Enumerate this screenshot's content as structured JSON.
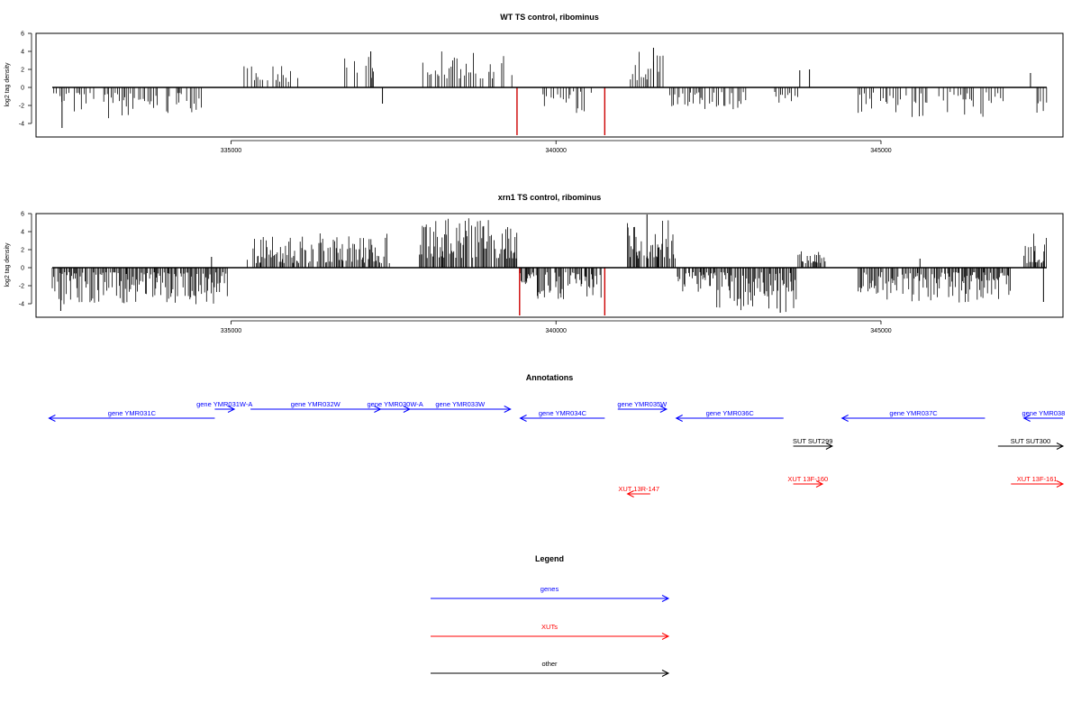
{
  "chart_data": [
    {
      "type": "bar",
      "title": "WT TS control, ribominus",
      "ylabel": "log2 tag density",
      "xlabel": "",
      "xlim": [
        332000,
        347800
      ],
      "xticks": [
        335000,
        340000,
        345000
      ],
      "ylim": [
        -5.5,
        6
      ],
      "yticks": [
        6,
        4,
        2,
        0,
        -2,
        -4
      ],
      "grid": false,
      "seed": 11,
      "zero_line": [
        332250,
        347550
      ],
      "segments": [
        {
          "x0": 332250,
          "x1": 334550,
          "min": -3.5,
          "max": -0.6
        },
        {
          "x0": 335200,
          "x1": 336100,
          "min": 0.6,
          "max": 2.5
        },
        {
          "x0": 336750,
          "x1": 337200,
          "min": 1.0,
          "max": 3.5
        },
        {
          "x0": 337950,
          "x1": 339350,
          "min": 1.0,
          "max": 4.2
        },
        {
          "x0": 339800,
          "x1": 340550,
          "min": -3.0,
          "max": -0.4
        },
        {
          "x0": 341100,
          "x1": 341650,
          "min": 0.8,
          "max": 4.0
        },
        {
          "x0": 341750,
          "x1": 343000,
          "min": -2.5,
          "max": -0.5
        },
        {
          "x0": 343300,
          "x1": 343750,
          "min": -2.0,
          "max": -0.5
        },
        {
          "x0": 344650,
          "x1": 346900,
          "min": -3.4,
          "max": -0.5
        },
        {
          "x0": 347400,
          "x1": 347550,
          "min": -3.0,
          "max": -0.8
        }
      ],
      "spikes": [
        {
          "x": 332400,
          "y": -4.5
        },
        {
          "x": 337330,
          "y": -1.8
        },
        {
          "x": 337150,
          "y": 4.0
        },
        {
          "x": 341500,
          "y": 4.4
        },
        {
          "x": 343750,
          "y": 1.9
        },
        {
          "x": 343900,
          "y": 2.0
        },
        {
          "x": 347300,
          "y": 1.6
        }
      ],
      "highlights": [
        {
          "x": 339400,
          "y": -5.3
        },
        {
          "x": 340750,
          "y": -5.3
        }
      ]
    },
    {
      "type": "bar",
      "title": "xrn1 TS control, ribominus",
      "ylabel": "log2 tag density",
      "xlabel": "",
      "xlim": [
        332000,
        347800
      ],
      "xticks": [
        335000,
        340000,
        345000
      ],
      "ylim": [
        -5.5,
        6
      ],
      "yticks": [
        6,
        4,
        2,
        0,
        -2,
        -4
      ],
      "grid": false,
      "seed": 37,
      "zero_line": [
        332250,
        347550
      ],
      "segments": [
        {
          "x0": 332250,
          "x1": 334950,
          "min": -4.2,
          "max": -0.5
        },
        {
          "x0": 335250,
          "x1": 337450,
          "min": 0.5,
          "max": 3.8
        },
        {
          "x0": 337900,
          "x1": 339400,
          "min": 1.0,
          "max": 5.5
        },
        {
          "x0": 339450,
          "x1": 340700,
          "min": -3.5,
          "max": -0.5
        },
        {
          "x0": 341100,
          "x1": 341850,
          "min": 1.0,
          "max": 5.5
        },
        {
          "x0": 341850,
          "x1": 343700,
          "min": -5.0,
          "max": -0.5
        },
        {
          "x0": 343700,
          "x1": 344150,
          "min": 0.5,
          "max": 1.9
        },
        {
          "x0": 344650,
          "x1": 347000,
          "min": -4.0,
          "max": -0.5
        },
        {
          "x0": 347200,
          "x1": 347550,
          "min": 0.5,
          "max": 4.0
        }
      ],
      "spikes": [
        {
          "x": 332380,
          "y": -4.8
        },
        {
          "x": 334700,
          "y": 1.2
        },
        {
          "x": 341400,
          "y": 5.9
        },
        {
          "x": 343450,
          "y": -5.0
        },
        {
          "x": 345600,
          "y": 1.0
        },
        {
          "x": 347500,
          "y": -3.8
        }
      ],
      "highlights": [
        {
          "x": 339440,
          "y": -5.3
        },
        {
          "x": 340750,
          "y": -5.3
        }
      ]
    }
  ],
  "colors": {
    "gene": "#0000ff",
    "xut": "#ff0000",
    "other": "#000000",
    "bar": "#000000",
    "highlight": "#cc0000"
  },
  "annotations": {
    "title": "Annotations",
    "features": [
      {
        "label": "gene YMR031C",
        "kind": "gene",
        "start": 334750,
        "end": 332200,
        "row": 2
      },
      {
        "label": "gene YMR031W-A",
        "kind": "gene",
        "start": 334750,
        "end": 335050,
        "row": 1
      },
      {
        "label": "gene YMR032W",
        "kind": "gene",
        "start": 335300,
        "end": 337300,
        "row": 1
      },
      {
        "label": "gene YMR030W-A",
        "kind": "gene",
        "start": 337300,
        "end": 337750,
        "row": 1
      },
      {
        "label": "gene YMR033W",
        "kind": "gene",
        "start": 337750,
        "end": 339300,
        "row": 1
      },
      {
        "label": "gene YMR034C",
        "kind": "gene",
        "start": 340750,
        "end": 339450,
        "row": 2
      },
      {
        "label": "gene YMR035W",
        "kind": "gene",
        "start": 340950,
        "end": 341700,
        "row": 1
      },
      {
        "label": "gene YMR036C",
        "kind": "gene",
        "start": 343500,
        "end": 341850,
        "row": 2
      },
      {
        "label": "gene YMR037C",
        "kind": "gene",
        "start": 346600,
        "end": 344400,
        "row": 2
      },
      {
        "label": "gene YMR038",
        "kind": "gene",
        "start": 347800,
        "end": 347200,
        "row": 2
      },
      {
        "label": "SUT SUT299",
        "kind": "other",
        "start": 343650,
        "end": 344250,
        "row": 3
      },
      {
        "label": "SUT SUT300",
        "kind": "other",
        "start": 346800,
        "end": 347800,
        "row": 3
      },
      {
        "label": "XUT 13F-160",
        "kind": "xut",
        "start": 343650,
        "end": 344100,
        "row": 4
      },
      {
        "label": "XUT 13F-161",
        "kind": "xut",
        "start": 347000,
        "end": 347800,
        "row": 4
      },
      {
        "label": "XUT 13R-147",
        "kind": "xut",
        "start": 341450,
        "end": 341100,
        "row": 5
      }
    ]
  },
  "legend": {
    "title": "Legend",
    "items": [
      {
        "label": "genes",
        "kind": "gene"
      },
      {
        "label": "XUTs",
        "kind": "xut"
      },
      {
        "label": "other",
        "kind": "other"
      }
    ]
  }
}
